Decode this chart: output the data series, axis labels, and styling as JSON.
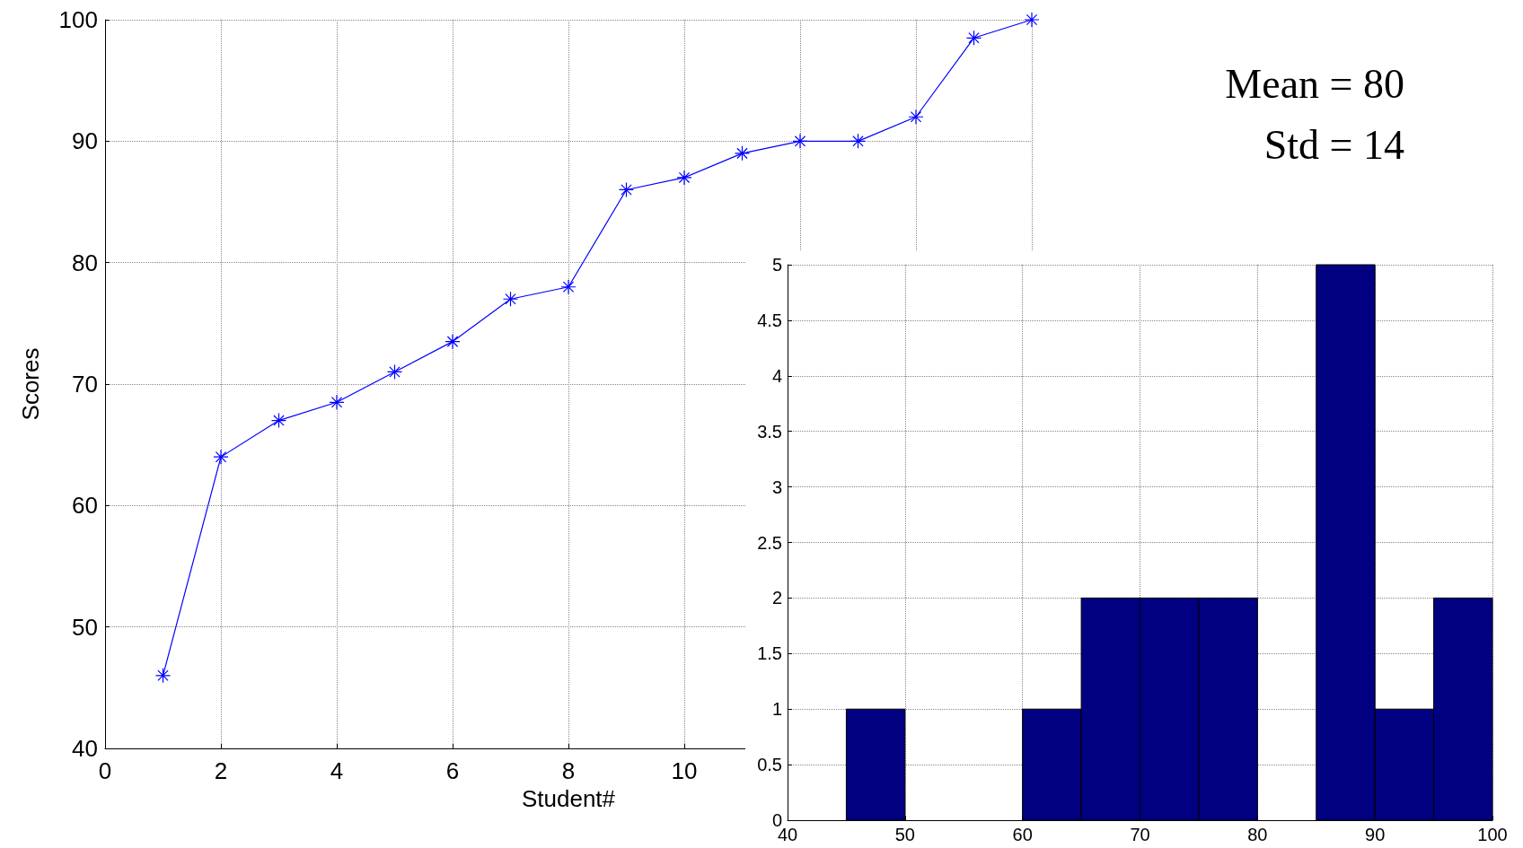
{
  "chart_data": [
    {
      "type": "line",
      "xlabel": "Student#",
      "ylabel": "Scores",
      "x": [
        1,
        2,
        3,
        4,
        5,
        6,
        7,
        8,
        9,
        10,
        11,
        12,
        13,
        14,
        15,
        16
      ],
      "series": [
        {
          "color": "#0000ff",
          "values": [
            46,
            64,
            67,
            68.5,
            71,
            73.5,
            77,
            78,
            86,
            87,
            89,
            90,
            90,
            92,
            98.5,
            100
          ]
        }
      ],
      "xlim": [
        0,
        16
      ],
      "xticks": [
        0,
        2,
        4,
        6,
        8,
        10,
        {
          "value": 12,
          "label": null
        },
        {
          "value": 14,
          "label": null
        },
        {
          "value": 16,
          "label": null
        }
      ],
      "ylim": [
        40,
        100
      ],
      "yticks": [
        40,
        50,
        60,
        70,
        80,
        90,
        100
      ],
      "grid": true,
      "marker": "cross",
      "line_style": "solid",
      "annotations": [
        "Mean = 80",
        "Std = 14"
      ]
    },
    {
      "type": "histogram",
      "bins": [
        40,
        45,
        50,
        55,
        60,
        65,
        70,
        75,
        80,
        85,
        90,
        95,
        100
      ],
      "values": [
        0,
        1,
        0,
        0,
        1,
        2,
        2,
        2,
        0,
        5,
        1,
        2
      ],
      "color": "#000080",
      "xlim": [
        40,
        100
      ],
      "xticks": [
        40,
        50,
        60,
        70,
        80,
        90,
        100
      ],
      "ylim": [
        0,
        5
      ],
      "yticks": [
        0,
        0.5,
        1,
        1.5,
        2,
        2.5,
        3,
        3.5,
        4,
        4.5,
        5
      ],
      "grid": true
    }
  ]
}
